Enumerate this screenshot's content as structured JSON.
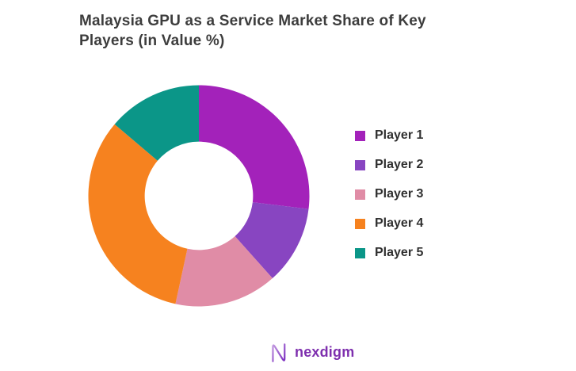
{
  "title": {
    "line1": "Malaysia GPU as a Service Market Share of Key",
    "line2": "Players (in Value %)"
  },
  "chart_data": {
    "type": "pie",
    "subtype": "donut",
    "title": "Malaysia GPU as a Service Market Share of Key Players (in Value %)",
    "categories": [
      "Player 1",
      "Player 2",
      "Player 3",
      "Player 4",
      "Player 5"
    ],
    "values": [
      26.9,
      11.5,
      15.0,
      32.8,
      13.8
    ],
    "unit": "%",
    "colors": [
      "#a322ba",
      "#8845c1",
      "#e08ca6",
      "#f6821f",
      "#0b9688"
    ],
    "start_angle_deg": 0,
    "direction": "clockwise",
    "inner_radius_ratio": 0.49,
    "legend_position": "right",
    "data_labels_visible": false
  },
  "legend": {
    "items": [
      {
        "label": "Player 1",
        "color": "#a322ba"
      },
      {
        "label": "Player 2",
        "color": "#8845c1"
      },
      {
        "label": "Player 3",
        "color": "#e08ca6"
      },
      {
        "label": "Player 4",
        "color": "#f6821f"
      },
      {
        "label": "Player 5",
        "color": "#0b9688"
      }
    ]
  },
  "branding": {
    "logo_text": "nexdigm",
    "logo_color": "#7e2fae"
  }
}
